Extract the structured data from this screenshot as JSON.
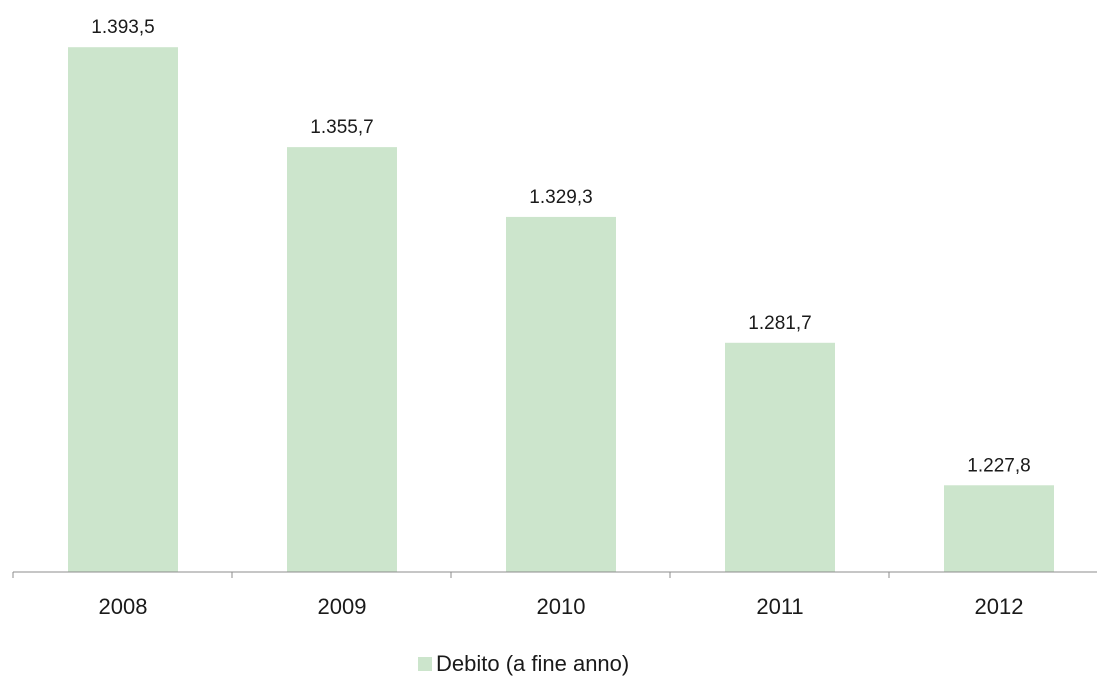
{
  "chart_data": {
    "type": "bar",
    "categories": [
      "2008",
      "2009",
      "2010",
      "2011",
      "2012"
    ],
    "series": [
      {
        "name": "Debito (a fine anno)",
        "values": [
          1393.5,
          1355.7,
          1329.3,
          1281.7,
          1227.8
        ],
        "value_labels": [
          "1.393,5",
          "1.355,7",
          "1.329,3",
          "1.281,7",
          "1.227,8"
        ],
        "color": "#cce5cc"
      }
    ],
    "title": "",
    "xlabel": "",
    "ylabel": "",
    "ylim": [
      1195,
      1400
    ],
    "grid": false,
    "legend": "bottom-center",
    "axis_color": "#8c8c8c"
  }
}
